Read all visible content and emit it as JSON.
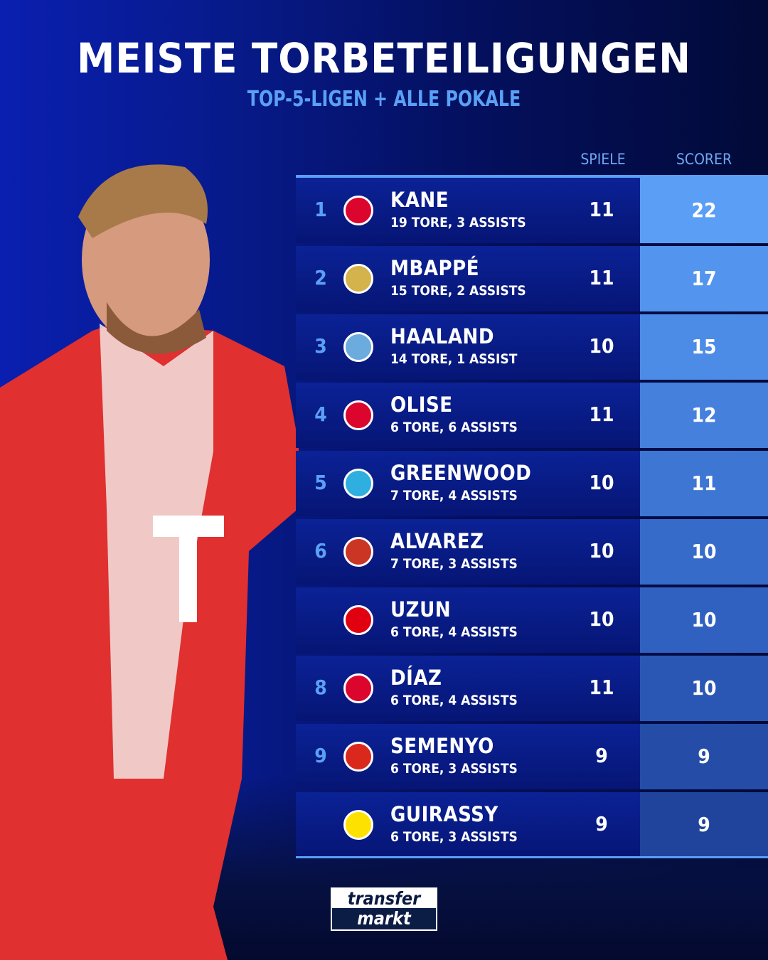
{
  "header": {
    "title": "MEISTE TORBETEILIGUNGEN",
    "subtitle": "TOP-5-LIGEN + ALLE POKALE"
  },
  "columns": {
    "games": "SPIELE",
    "scorer": "SCORER"
  },
  "colors": {
    "accent": "#5a9ef5",
    "row": "#0b2296",
    "background": "#020a3a"
  },
  "rows": [
    {
      "rank": "1",
      "club_icon": "fc-bayern-crest",
      "crest_color": "#dc052d",
      "name": "KANE",
      "detail": "19 TORE, 3 ASSISTS",
      "games": "11",
      "scorer": "22",
      "scorer_bg": "#5a9ef5"
    },
    {
      "rank": "2",
      "club_icon": "real-madrid-crest",
      "crest_color": "#d4b24c",
      "name": "MBAPPÉ",
      "detail": "15 TORE, 2 ASSISTS",
      "games": "11",
      "scorer": "17",
      "scorer_bg": "#5395ee"
    },
    {
      "rank": "3",
      "club_icon": "man-city-crest",
      "crest_color": "#6cabdd",
      "name": "HAALAND",
      "detail": "14 TORE, 1 ASSIST",
      "games": "10",
      "scorer": "15",
      "scorer_bg": "#4c8be6"
    },
    {
      "rank": "4",
      "club_icon": "fc-bayern-crest",
      "crest_color": "#dc052d",
      "name": "OLISE",
      "detail": "6 TORE, 6 ASSISTS",
      "games": "11",
      "scorer": "12",
      "scorer_bg": "#4580dd"
    },
    {
      "rank": "5",
      "club_icon": "marseille-crest",
      "crest_color": "#2faee0",
      "name": "GREENWOOD",
      "detail": "7 TORE, 4 ASSISTS",
      "games": "10",
      "scorer": "11",
      "scorer_bg": "#3e76d4"
    },
    {
      "rank": "6",
      "club_icon": "atletico-crest",
      "crest_color": "#cb3524",
      "name": "ALVAREZ",
      "detail": "7 TORE, 3 ASSISTS",
      "games": "10",
      "scorer": "10",
      "scorer_bg": "#376bca"
    },
    {
      "rank": "",
      "club_icon": "eintracht-crest",
      "crest_color": "#e1000f",
      "name": "UZUN",
      "detail": "6 TORE, 4 ASSISTS",
      "games": "10",
      "scorer": "10",
      "scorer_bg": "#3161c0"
    },
    {
      "rank": "8",
      "club_icon": "fc-bayern-crest",
      "crest_color": "#dc052d",
      "name": "DÍAZ",
      "detail": "6 TORE, 4 ASSISTS",
      "games": "11",
      "scorer": "10",
      "scorer_bg": "#2b57b4"
    },
    {
      "rank": "9",
      "club_icon": "bournemouth-crest",
      "crest_color": "#da291c",
      "name": "SEMENYO",
      "detail": "6 TORE, 3 ASSISTS",
      "games": "9",
      "scorer": "9",
      "scorer_bg": "#254da8"
    },
    {
      "rank": "",
      "club_icon": "bvb-crest",
      "crest_color": "#fde100",
      "name": "GUIRASSY",
      "detail": "6 TORE, 3 ASSISTS",
      "games": "9",
      "scorer": "9",
      "scorer_bg": "#20449c"
    }
  ],
  "logo": {
    "line1": "transfer",
    "line2": "markt"
  }
}
